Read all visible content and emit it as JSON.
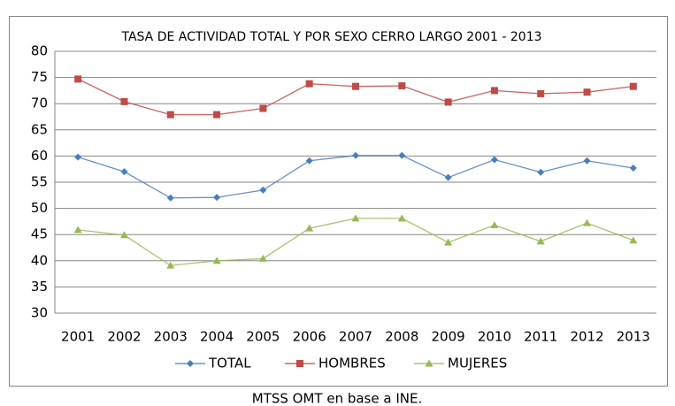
{
  "chart_data": {
    "type": "line",
    "title": "TASA DE ACTIVIDAD TOTAL Y POR SEXO CERRO LARGO 2001 - 2013",
    "source": "MTSS OMT en base a INE.",
    "categories": [
      "2001",
      "2002",
      "2003",
      "2004",
      "2005",
      "2006",
      "2007",
      "2008",
      "2009",
      "2010",
      "2011",
      "2012",
      "2013"
    ],
    "series": [
      {
        "name": "TOTAL",
        "color": "#4a7ebb",
        "marker": "diamond",
        "values": [
          59.8,
          57.0,
          52.0,
          52.1,
          53.5,
          59.1,
          60.1,
          60.1,
          55.9,
          59.3,
          56.9,
          59.1,
          57.7
        ]
      },
      {
        "name": "HOMBRES",
        "color": "#be4b48",
        "marker": "square",
        "values": [
          74.7,
          70.4,
          67.9,
          67.9,
          69.1,
          73.8,
          73.3,
          73.4,
          70.3,
          72.5,
          71.9,
          72.2,
          73.3
        ]
      },
      {
        "name": "MUJERES",
        "color": "#98b954",
        "marker": "triangle",
        "values": [
          45.9,
          44.9,
          39.1,
          40.0,
          40.4,
          46.2,
          48.1,
          48.1,
          43.5,
          46.8,
          43.7,
          47.2,
          43.9
        ]
      }
    ],
    "ylim": [
      30,
      80
    ],
    "yticks": [
      30,
      35,
      40,
      45,
      50,
      55,
      60,
      65,
      70,
      75,
      80
    ],
    "grid": true,
    "legend": "bottom"
  }
}
